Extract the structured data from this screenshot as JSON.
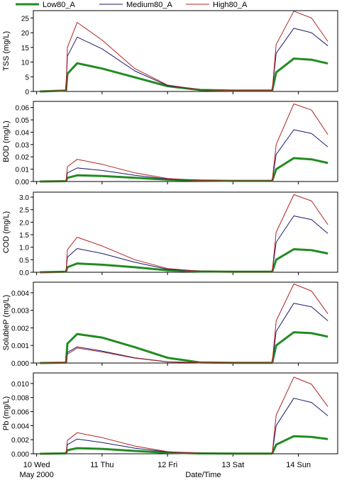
{
  "legend": {
    "items": [
      {
        "label": "Low80_A",
        "color": "#228b22"
      },
      {
        "label": "Medium80_A",
        "color": "#1a1a6e"
      },
      {
        "label": "High80_A",
        "color": "#b22222"
      }
    ]
  },
  "x_axis": {
    "title": "Date/Time",
    "month_label": "May 2000",
    "ticks": [
      {
        "day": 10,
        "label": "10 Wed"
      },
      {
        "day": 11,
        "label": "11 Thu"
      },
      {
        "day": 12,
        "label": "12 Fri"
      },
      {
        "day": 13,
        "label": "13 Sat"
      },
      {
        "day": 14,
        "label": "14 Sun"
      }
    ]
  },
  "chart_data": [
    {
      "type": "line",
      "ylabel": "TSS (mg/L)",
      "ylim": [
        0,
        27.5
      ],
      "yticks": [
        0,
        5,
        10,
        15,
        20,
        25
      ],
      "ytick_labels": [
        "0",
        "5",
        "10",
        "15",
        "20",
        "25"
      ],
      "x": [
        10.05,
        10.45,
        10.47,
        10.62,
        11.0,
        11.5,
        12.0,
        12.5,
        13.0,
        13.6,
        13.66,
        13.93,
        14.2,
        14.45
      ],
      "series": [
        {
          "name": "Low80_A",
          "values": [
            0,
            0.3,
            6.0,
            9.6,
            7.8,
            4.8,
            1.8,
            0.5,
            0.3,
            0.3,
            6.5,
            11.2,
            10.8,
            9.5
          ]
        },
        {
          "name": "Medium80_A",
          "values": [
            0,
            0.3,
            12.0,
            18.5,
            14.5,
            7.0,
            2.0,
            0.6,
            0.3,
            0.3,
            13.0,
            21.5,
            20.0,
            15.5
          ]
        },
        {
          "name": "High80_A",
          "values": [
            0,
            0.3,
            15.0,
            23.5,
            17.5,
            7.8,
            2.2,
            0.6,
            0.3,
            0.3,
            16.0,
            27.3,
            25.0,
            17.0
          ]
        }
      ]
    },
    {
      "type": "line",
      "ylabel": "BOD (mg/L)",
      "ylim": [
        0,
        0.065
      ],
      "yticks": [
        0,
        0.01,
        0.02,
        0.03,
        0.04,
        0.05,
        0.06
      ],
      "ytick_labels": [
        "0.00",
        "0.01",
        "0.02",
        "0.03",
        "0.04",
        "0.05",
        "0.06"
      ],
      "x": [
        10.05,
        10.45,
        10.47,
        10.62,
        11.0,
        11.5,
        12.0,
        12.5,
        13.0,
        13.6,
        13.66,
        13.93,
        14.2,
        14.45
      ],
      "series": [
        {
          "name": "Low80_A",
          "values": [
            0,
            0.0003,
            0.003,
            0.005,
            0.0045,
            0.003,
            0.0015,
            0.0008,
            0.0005,
            0.0005,
            0.01,
            0.019,
            0.018,
            0.015
          ]
        },
        {
          "name": "Medium80_A",
          "values": [
            0,
            0.0003,
            0.007,
            0.011,
            0.009,
            0.005,
            0.002,
            0.0008,
            0.0005,
            0.0005,
            0.022,
            0.042,
            0.039,
            0.028
          ]
        },
        {
          "name": "High80_A",
          "values": [
            0,
            0.0003,
            0.012,
            0.018,
            0.014,
            0.007,
            0.0025,
            0.0008,
            0.0005,
            0.0005,
            0.03,
            0.063,
            0.058,
            0.038
          ]
        }
      ]
    },
    {
      "type": "line",
      "ylabel": "COD (mg/L)",
      "ylim": [
        0,
        3.2
      ],
      "yticks": [
        0,
        0.5,
        1.0,
        1.5,
        2.0,
        2.5,
        3.0
      ],
      "ytick_labels": [
        "0.0",
        "0.5",
        "1.0",
        "1.5",
        "2.0",
        "2.5",
        "3.0"
      ],
      "x": [
        10.05,
        10.45,
        10.47,
        10.62,
        11.0,
        11.5,
        12.0,
        12.5,
        13.0,
        13.6,
        13.66,
        13.93,
        14.2,
        14.45
      ],
      "series": [
        {
          "name": "Low80_A",
          "values": [
            0,
            0.02,
            0.2,
            0.35,
            0.3,
            0.2,
            0.08,
            0.03,
            0.02,
            0.02,
            0.5,
            0.92,
            0.88,
            0.75
          ]
        },
        {
          "name": "Medium80_A",
          "values": [
            0,
            0.02,
            0.6,
            0.95,
            0.75,
            0.4,
            0.12,
            0.04,
            0.02,
            0.02,
            1.2,
            2.25,
            2.1,
            1.55
          ]
        },
        {
          "name": "High80_A",
          "values": [
            0,
            0.02,
            0.9,
            1.4,
            1.05,
            0.5,
            0.15,
            0.04,
            0.02,
            0.02,
            1.6,
            3.1,
            2.85,
            1.9
          ]
        }
      ]
    },
    {
      "type": "line",
      "ylabel": "SolubleP (mg/L)",
      "ylim": [
        0,
        0.0046
      ],
      "yticks": [
        0,
        0.001,
        0.002,
        0.003,
        0.004
      ],
      "ytick_labels": [
        "0.000",
        "0.001",
        "0.002",
        "0.003",
        "0.004"
      ],
      "x": [
        10.05,
        10.45,
        10.47,
        10.62,
        11.0,
        11.5,
        12.0,
        12.5,
        13.0,
        13.6,
        13.66,
        13.93,
        14.2,
        14.45
      ],
      "series": [
        {
          "name": "Low80_A",
          "values": [
            0,
            2e-05,
            0.0011,
            0.00165,
            0.00145,
            0.0009,
            0.0003,
            3e-05,
            1e-05,
            1e-05,
            0.001,
            0.00175,
            0.0017,
            0.0015
          ]
        },
        {
          "name": "Medium80_A",
          "values": [
            0,
            2e-05,
            0.0006,
            0.00092,
            0.00068,
            0.0003,
            7e-05,
            2e-05,
            1e-05,
            1e-05,
            0.0018,
            0.0034,
            0.0032,
            0.0024
          ]
        },
        {
          "name": "High80_A",
          "values": [
            0,
            2e-05,
            0.0005,
            0.00085,
            0.00063,
            0.00028,
            6e-05,
            2e-05,
            1e-05,
            1e-05,
            0.0024,
            0.0045,
            0.0041,
            0.0028
          ]
        }
      ]
    },
    {
      "type": "line",
      "ylabel": "Pb (mg/L)",
      "ylim": [
        0,
        0.0115
      ],
      "yticks": [
        0,
        0.002,
        0.004,
        0.006,
        0.008,
        0.01
      ],
      "ytick_labels": [
        "0.000",
        "0.002",
        "0.004",
        "0.006",
        "0.008",
        "0.010"
      ],
      "x": [
        10.05,
        10.45,
        10.47,
        10.62,
        11.0,
        11.5,
        12.0,
        12.5,
        13.0,
        13.6,
        13.66,
        13.93,
        14.2,
        14.45
      ],
      "series": [
        {
          "name": "Low80_A",
          "values": [
            0,
            5e-05,
            0.0005,
            0.0008,
            0.0007,
            0.0004,
            0.00015,
            5e-05,
            3e-05,
            3e-05,
            0.0013,
            0.0025,
            0.0024,
            0.0021
          ]
        },
        {
          "name": "Medium80_A",
          "values": [
            0,
            5e-05,
            0.0013,
            0.0021,
            0.0016,
            0.0008,
            0.00025,
            6e-05,
            3e-05,
            3e-05,
            0.004,
            0.0079,
            0.0073,
            0.0054
          ]
        },
        {
          "name": "High80_A",
          "values": [
            0,
            5e-05,
            0.0019,
            0.003,
            0.0023,
            0.0011,
            0.0003,
            7e-05,
            3e-05,
            3e-05,
            0.0055,
            0.0109,
            0.0099,
            0.0067
          ]
        }
      ]
    }
  ]
}
